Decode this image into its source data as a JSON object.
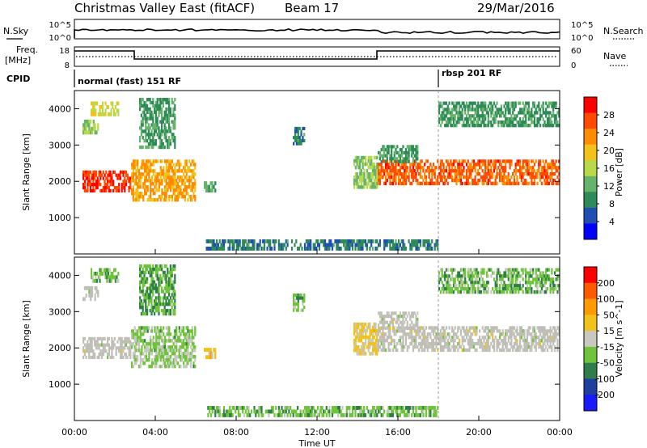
{
  "header": {
    "title": "Christmas Valley East (fitACF)",
    "beam": "Beam 17",
    "date": "29/Mar/2016"
  },
  "top_panels": {
    "nsky_label": "N.Sky",
    "nsearch_label": "N.Search",
    "freq_label_line1": "Freq.",
    "freq_label_line2": "[MHz]",
    "nave_label": "Nave",
    "cpid_label": "CPID",
    "counts_ticks": [
      "10^5",
      "10^0"
    ],
    "counts_right_ticks": [
      "10^5",
      "10^0"
    ],
    "freq_ticks": [
      "18",
      "8"
    ],
    "nave_ticks": [
      "60",
      "0"
    ],
    "cpid_segments": [
      {
        "start_hour": 0.0,
        "end_hour": 18.0,
        "label": "normal (fast) 151 RF"
      },
      {
        "start_hour": 18.0,
        "end_hour": 24.0,
        "label": "rbsp 201 RF"
      }
    ]
  },
  "colors": {
    "power_scale": [
      "#0000ff",
      "#1f4fb4",
      "#2e8b57",
      "#66b36b",
      "#b8d94a",
      "#f0c21a",
      "#ff8c00",
      "#ff4a00",
      "#ff0000"
    ],
    "velocity_scale": [
      "#1a1aff",
      "#1f3f9f",
      "#2e7d4a",
      "#6fc43c",
      "#c8c8c0",
      "#f0c21a",
      "#ff9a00",
      "#ff5a00",
      "#ff0000"
    ],
    "ground_scatter": "#bfbfb7"
  },
  "chart_data": [
    {
      "type": "heatmap",
      "name": "power",
      "xlabel": "",
      "ylabel": "Slant Range [km]",
      "xlim_hours": [
        0,
        24
      ],
      "ylim_km": [
        0,
        4500
      ],
      "colorbar_label": "Power [dB]",
      "colorbar_ticks": [
        "28",
        "24",
        "20",
        "16",
        "12",
        "8",
        "4"
      ],
      "colorbar_range": [
        0,
        32
      ],
      "y_ticks": [
        "4000",
        "3000",
        "2000",
        "1000"
      ],
      "regions": [
        {
          "t0": 0.4,
          "t1": 2.8,
          "r0": 1700,
          "r1": 2300,
          "level": 28
        },
        {
          "t0": 2.8,
          "t1": 6.0,
          "r0": 1450,
          "r1": 2600,
          "level": 22
        },
        {
          "t0": 0.4,
          "t1": 1.2,
          "r0": 3300,
          "r1": 3700,
          "level": 14
        },
        {
          "t0": 0.8,
          "t1": 2.2,
          "r0": 3800,
          "r1": 4200,
          "level": 18
        },
        {
          "t0": 3.2,
          "t1": 5.0,
          "r0": 2900,
          "r1": 4300,
          "level": 10
        },
        {
          "t0": 6.4,
          "t1": 7.0,
          "r0": 1700,
          "r1": 2000,
          "level": 12
        },
        {
          "t0": 10.8,
          "t1": 11.4,
          "r0": 3000,
          "r1": 3500,
          "level": 8
        },
        {
          "t0": 13.8,
          "t1": 15.0,
          "r0": 1800,
          "r1": 2700,
          "level": 14
        },
        {
          "t0": 15.0,
          "t1": 24.0,
          "r0": 1900,
          "r1": 2600,
          "level": 26
        },
        {
          "t0": 15.0,
          "t1": 17.0,
          "r0": 2500,
          "r1": 3000,
          "level": 10
        },
        {
          "t0": 18.0,
          "t1": 24.0,
          "r0": 3500,
          "r1": 4200,
          "level": 10
        },
        {
          "t0": 6.5,
          "t1": 18.0,
          "r0": 100,
          "r1": 400,
          "level": 8
        }
      ]
    },
    {
      "type": "heatmap",
      "name": "velocity",
      "xlabel": "Time UT",
      "ylabel": "Slant Range [km]",
      "xlim_hours": [
        0,
        24
      ],
      "ylim_km": [
        0,
        4500
      ],
      "colorbar_label": "Velocity [m s^-1]",
      "colorbar_ticks": [
        "200",
        "100",
        "50",
        "15",
        "-15",
        "-50",
        "-100",
        "-200"
      ],
      "colorbar_range": [
        -250,
        250
      ],
      "y_ticks": [
        "4000",
        "3000",
        "2000",
        "1000"
      ],
      "x_ticks": [
        "00:00",
        "04:00",
        "08:00",
        "12:00",
        "16:00",
        "20:00",
        "00:00"
      ],
      "regions": [
        {
          "t0": 0.4,
          "t1": 2.8,
          "r0": 1700,
          "r1": 2300,
          "level": 0
        },
        {
          "t0": 2.8,
          "t1": 6.0,
          "r0": 1450,
          "r1": 2600,
          "level": -40
        },
        {
          "t0": 0.4,
          "t1": 1.2,
          "r0": 3300,
          "r1": 3700,
          "level": 0
        },
        {
          "t0": 0.8,
          "t1": 2.2,
          "r0": 3800,
          "r1": 4200,
          "level": -60
        },
        {
          "t0": 3.2,
          "t1": 5.0,
          "r0": 2900,
          "r1": 4300,
          "level": -80
        },
        {
          "t0": 6.4,
          "t1": 7.0,
          "r0": 1700,
          "r1": 2000,
          "level": 50
        },
        {
          "t0": 10.8,
          "t1": 11.4,
          "r0": 3000,
          "r1": 3500,
          "level": -60
        },
        {
          "t0": 13.8,
          "t1": 15.0,
          "r0": 1800,
          "r1": 2700,
          "level": 40
        },
        {
          "t0": 15.0,
          "t1": 24.0,
          "r0": 1900,
          "r1": 2600,
          "level": 0
        },
        {
          "t0": 15.0,
          "t1": 17.0,
          "r0": 2500,
          "r1": 3000,
          "level": 0
        },
        {
          "t0": 18.0,
          "t1": 24.0,
          "r0": 3500,
          "r1": 4200,
          "level": -60
        },
        {
          "t0": 6.5,
          "t1": 18.0,
          "r0": 100,
          "r1": 400,
          "level": -60
        }
      ]
    }
  ]
}
